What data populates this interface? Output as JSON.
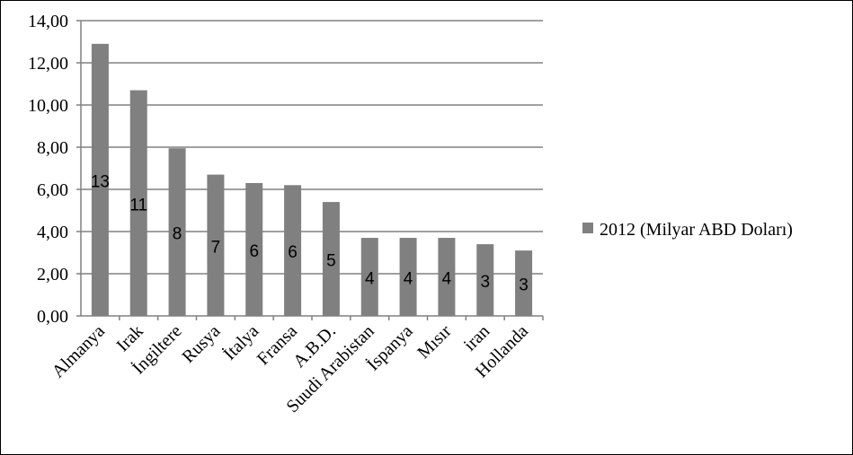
{
  "chart_data": {
    "type": "bar",
    "title": "",
    "xlabel": "",
    "ylabel": "",
    "ylim": [
      0,
      14
    ],
    "yticks": [
      "0,00",
      "2,00",
      "4,00",
      "6,00",
      "8,00",
      "10,00",
      "12,00",
      "14,00"
    ],
    "grid": true,
    "legend_position": "right",
    "bar_color": "#808080",
    "categories": [
      "Almanya",
      "Irak",
      "İngiltere",
      "Rusya",
      "İtalya",
      "Fransa",
      "A.B.D.",
      "Suudi Arabistan",
      "İspanya",
      "Mısır",
      "iran",
      "Hollanda"
    ],
    "series": [
      {
        "name": "2012 (Milyar ABD Doları)",
        "values": [
          12.9,
          10.7,
          7.95,
          6.7,
          6.3,
          6.2,
          5.4,
          3.7,
          3.7,
          3.7,
          3.4,
          3.1
        ],
        "data_labels": [
          "13",
          "11",
          "8",
          "7",
          "6",
          "6",
          "5",
          "4",
          "4",
          "4",
          "3",
          "3"
        ]
      }
    ]
  }
}
